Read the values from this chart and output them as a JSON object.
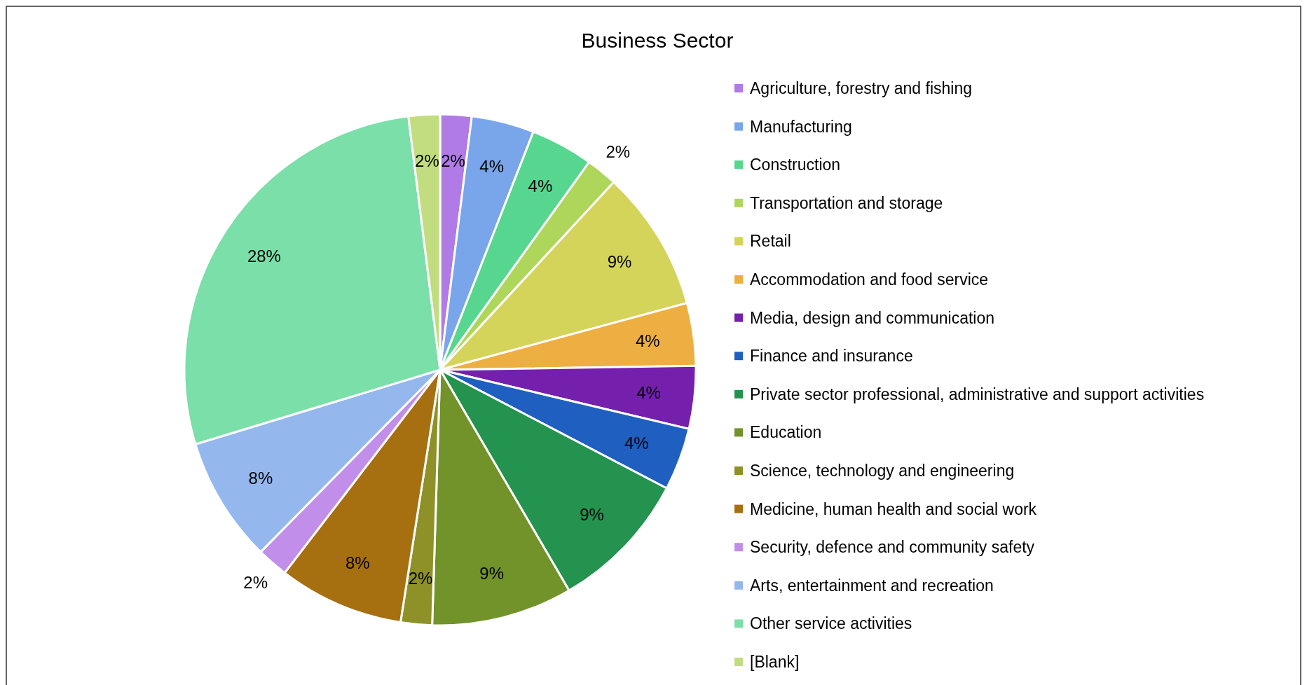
{
  "chart_data": {
    "type": "pie",
    "title": "Business Sector",
    "categories": [
      "Agriculture, forestry and fishing",
      "Manufacturing",
      "Construction",
      "Transportation and storage",
      "Retail",
      "Accommodation and food service",
      "Media, design and communication",
      "Finance and insurance",
      "Private sector professional, administrative and support activities",
      "Education",
      "Science, technology and engineering",
      "Medicine, human health and social work",
      "Security, defence and community safety",
      "Arts, entertainment and recreation",
      "Other service activities",
      "[Blank]"
    ],
    "values": [
      2,
      4,
      4,
      2,
      9,
      4,
      4,
      4,
      9,
      9,
      2,
      8,
      2,
      8,
      28,
      2
    ],
    "colors": [
      "#b07be6",
      "#79a6ea",
      "#56d68f",
      "#aed65a",
      "#d4d45a",
      "#eeaf42",
      "#7420ad",
      "#1f5fbf",
      "#23934f",
      "#72922a",
      "#8e9128",
      "#a66f10",
      "#c18eea",
      "#94b8ee",
      "#7adfa8",
      "#c1dd80"
    ],
    "value_labels": [
      "2%",
      "4%",
      "4%",
      "2%",
      "9%",
      "4%",
      "4%",
      "4%",
      "9%",
      "9%",
      "2%",
      "8%",
      "2%",
      "8%",
      "28%",
      "2%"
    ],
    "legend": "right"
  }
}
